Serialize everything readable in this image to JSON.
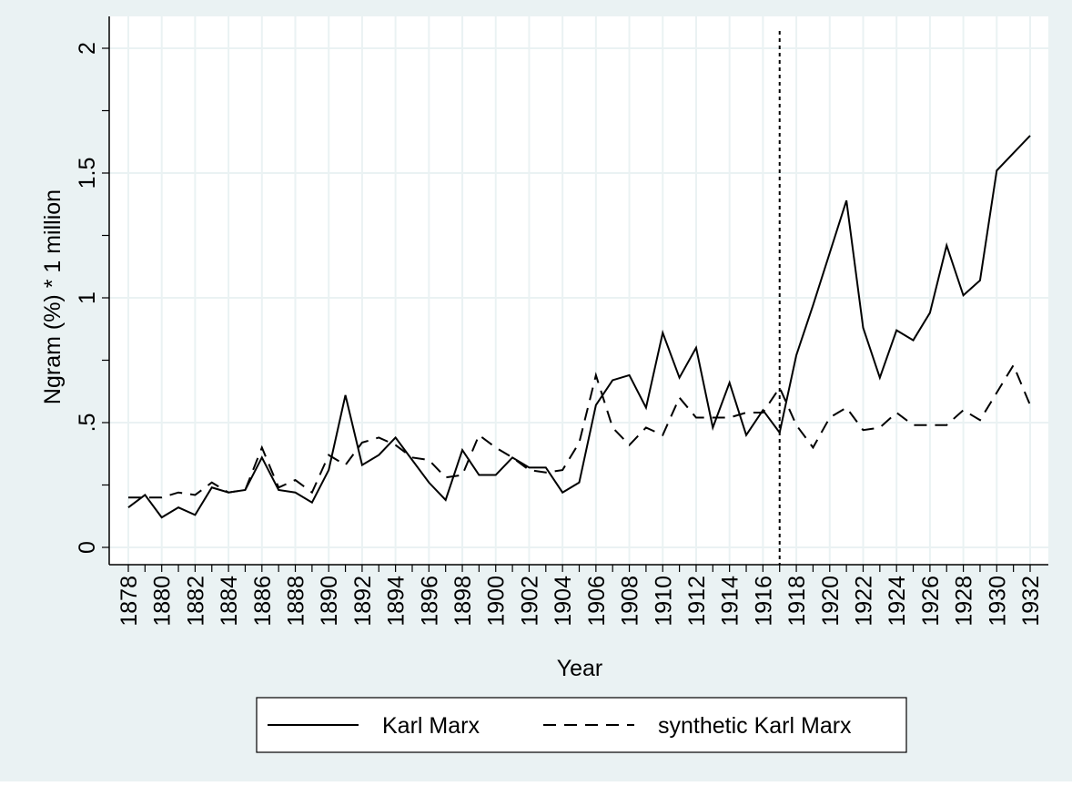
{
  "chart_data": {
    "type": "line",
    "xlabel": "Year",
    "ylabel": "Ngram (%) * 1 million",
    "xlim": [
      1878,
      1932
    ],
    "ylim": [
      0,
      2
    ],
    "x_ticks": [
      "1878",
      "1880",
      "1882",
      "1884",
      "1886",
      "1888",
      "1890",
      "1892",
      "1894",
      "1896",
      "1898",
      "1900",
      "1902",
      "1904",
      "1906",
      "1908",
      "1910",
      "1912",
      "1914",
      "1916",
      "1918",
      "1920",
      "1922",
      "1924",
      "1926",
      "1928",
      "1930",
      "1932"
    ],
    "y_ticks": [
      {
        "value": 0,
        "label": "0"
      },
      {
        "value": 0.5,
        "label": ".5"
      },
      {
        "value": 1,
        "label": "1"
      },
      {
        "value": 1.5,
        "label": "1.5"
      },
      {
        "value": 2,
        "label": "2"
      }
    ],
    "grid": true,
    "reference_line": {
      "x": 1917,
      "style": "dotted"
    },
    "legend_placement": "bottom",
    "x": [
      1878,
      1879,
      1880,
      1881,
      1882,
      1883,
      1884,
      1885,
      1886,
      1887,
      1888,
      1889,
      1890,
      1891,
      1892,
      1893,
      1894,
      1895,
      1896,
      1897,
      1898,
      1899,
      1900,
      1901,
      1902,
      1903,
      1904,
      1905,
      1906,
      1907,
      1908,
      1909,
      1910,
      1911,
      1912,
      1913,
      1914,
      1915,
      1916,
      1917,
      1918,
      1919,
      1920,
      1921,
      1922,
      1923,
      1924,
      1925,
      1926,
      1927,
      1928,
      1929,
      1930,
      1931,
      1932
    ],
    "series": [
      {
        "name": "Karl Marx",
        "style": "solid",
        "values": [
          0.16,
          0.21,
          0.12,
          0.16,
          0.13,
          0.24,
          0.22,
          0.23,
          0.36,
          0.23,
          0.22,
          0.18,
          0.31,
          0.61,
          0.33,
          0.37,
          0.44,
          0.35,
          0.26,
          0.19,
          0.39,
          0.29,
          0.29,
          0.36,
          0.32,
          0.32,
          0.22,
          0.26,
          0.57,
          0.67,
          0.69,
          0.56,
          0.86,
          0.68,
          0.8,
          0.48,
          0.66,
          0.45,
          0.55,
          0.46,
          0.77,
          0.97,
          1.18,
          1.39,
          0.88,
          0.68,
          0.87,
          0.83,
          0.94,
          1.21,
          1.01,
          1.07,
          1.51,
          1.58,
          1.65
        ]
      },
      {
        "name": "synthetic Karl Marx",
        "style": "dashed",
        "values": [
          0.2,
          0.2,
          0.2,
          0.22,
          0.21,
          0.26,
          0.22,
          0.23,
          0.4,
          0.24,
          0.27,
          0.22,
          0.37,
          0.33,
          0.42,
          0.44,
          0.41,
          0.36,
          0.35,
          0.28,
          0.29,
          0.45,
          0.4,
          0.36,
          0.31,
          0.3,
          0.31,
          0.42,
          0.69,
          0.48,
          0.41,
          0.48,
          0.45,
          0.6,
          0.52,
          0.52,
          0.52,
          0.54,
          0.54,
          0.64,
          0.49,
          0.4,
          0.52,
          0.56,
          0.47,
          0.48,
          0.54,
          0.49,
          0.49,
          0.49,
          0.55,
          0.51,
          0.62,
          0.73,
          0.57
        ]
      }
    ]
  },
  "colors": {
    "outer_background": "#eaf2f3",
    "plot_background": "#ffffff",
    "grid": "#eaf2f3",
    "line": "#000000"
  }
}
